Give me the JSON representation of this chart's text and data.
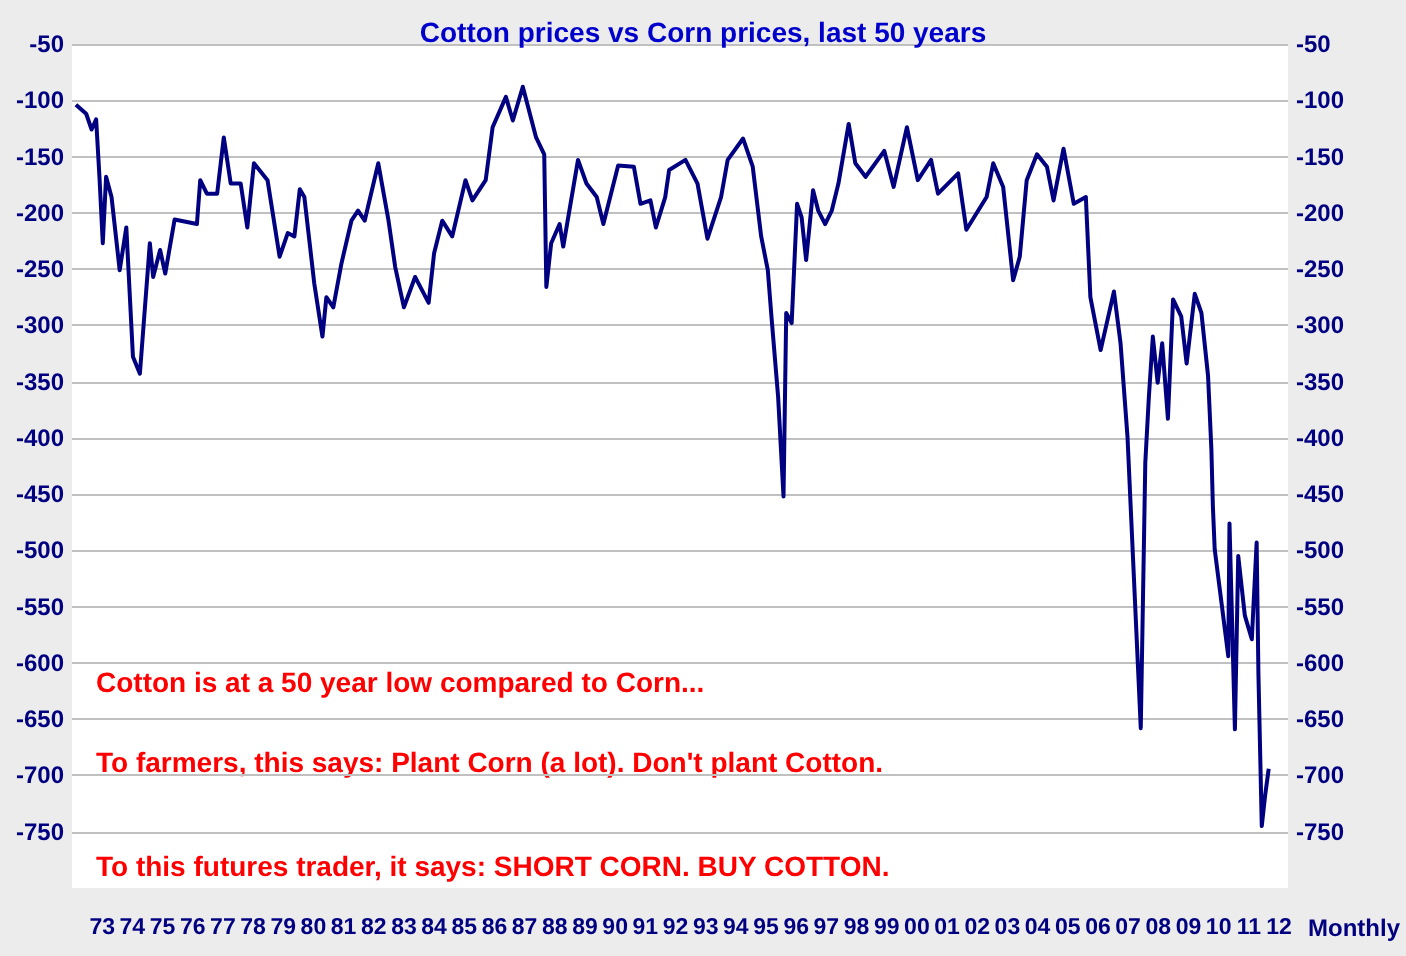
{
  "chart_data": {
    "type": "line",
    "title": "Cotton prices vs Corn prices, last 50 years",
    "xlabel": "Monthly",
    "annotations": [
      "Cotton is at a 50 year low compared to Corn...",
      "To farmers, this says: Plant Corn (a lot). Don't plant Cotton.",
      "To this futures trader, it says: SHORT CORN. BUY COTTON."
    ],
    "xlim": [
      1972,
      2012.3
    ],
    "xticks": [
      {
        "value": 1973,
        "label": "73"
      },
      {
        "value": 1974,
        "label": "74"
      },
      {
        "value": 1975,
        "label": "75"
      },
      {
        "value": 1976,
        "label": "76"
      },
      {
        "value": 1977,
        "label": "77"
      },
      {
        "value": 1978,
        "label": "78"
      },
      {
        "value": 1979,
        "label": "79"
      },
      {
        "value": 1980,
        "label": "80"
      },
      {
        "value": 1981,
        "label": "81"
      },
      {
        "value": 1982,
        "label": "82"
      },
      {
        "value": 1983,
        "label": "83"
      },
      {
        "value": 1984,
        "label": "84"
      },
      {
        "value": 1985,
        "label": "85"
      },
      {
        "value": 1986,
        "label": "86"
      },
      {
        "value": 1987,
        "label": "87"
      },
      {
        "value": 1988,
        "label": "88"
      },
      {
        "value": 1989,
        "label": "89"
      },
      {
        "value": 1990,
        "label": "90"
      },
      {
        "value": 1991,
        "label": "91"
      },
      {
        "value": 1992,
        "label": "92"
      },
      {
        "value": 1993,
        "label": "93"
      },
      {
        "value": 1994,
        "label": "94"
      },
      {
        "value": 1995,
        "label": "95"
      },
      {
        "value": 1996,
        "label": "96"
      },
      {
        "value": 1997,
        "label": "97"
      },
      {
        "value": 1998,
        "label": "98"
      },
      {
        "value": 1999,
        "label": "99"
      },
      {
        "value": 2000,
        "label": "00"
      },
      {
        "value": 2001,
        "label": "01"
      },
      {
        "value": 2002,
        "label": "02"
      },
      {
        "value": 2003,
        "label": "03"
      },
      {
        "value": 2004,
        "label": "04"
      },
      {
        "value": 2005,
        "label": "05"
      },
      {
        "value": 2006,
        "label": "06"
      },
      {
        "value": 2007,
        "label": "07"
      },
      {
        "value": 2008,
        "label": "08"
      },
      {
        "value": 2009,
        "label": "09"
      },
      {
        "value": 2010,
        "label": "10"
      },
      {
        "value": 2011,
        "label": "11"
      },
      {
        "value": 2012,
        "label": "12"
      }
    ],
    "ylim": [
      -800,
      -50
    ],
    "yticks": [
      -50,
      -100,
      -150,
      -200,
      -250,
      -300,
      -350,
      -400,
      -450,
      -500,
      -550,
      -600,
      -650,
      -700,
      -750
    ],
    "y2lim": [
      -800,
      -50
    ],
    "y2ticks": [
      -50,
      -100,
      -150,
      -200,
      -250,
      -300,
      -350,
      -400,
      -450,
      -500,
      -550,
      -600,
      -650,
      -700,
      -750
    ],
    "grid": "y",
    "marker": "none",
    "line_style": "solid",
    "series": [
      {
        "color": "#000080",
        "x": [
          1972.13,
          1972.47,
          1972.65,
          1972.8,
          1972.91,
          1973.02,
          1973.13,
          1973.31,
          1973.58,
          1973.8,
          1974.02,
          1974.25,
          1974.58,
          1974.69,
          1974.92,
          1975.09,
          1975.4,
          1976.14,
          1976.25,
          1976.47,
          1976.81,
          1977.03,
          1977.26,
          1977.59,
          1977.81,
          1978.03,
          1978.48,
          1978.88,
          1979.15,
          1979.37,
          1979.55,
          1979.7,
          1980.03,
          1980.3,
          1980.43,
          1980.66,
          1980.93,
          1981.26,
          1981.48,
          1981.7,
          1982.15,
          1982.49,
          1982.71,
          1983.0,
          1983.37,
          1983.82,
          1984.0,
          1984.27,
          1984.6,
          1985.04,
          1985.27,
          1985.71,
          1985.94,
          1986.38,
          1986.61,
          1986.94,
          1987.38,
          1987.65,
          1987.72,
          1987.88,
          1988.16,
          1988.28,
          1988.77,
          1989.05,
          1989.39,
          1989.61,
          1990.1,
          1990.62,
          1990.84,
          1991.17,
          1991.35,
          1991.66,
          1991.79,
          1992.33,
          1992.73,
          1993.06,
          1993.51,
          1993.73,
          1994.24,
          1994.56,
          1994.84,
          1995.06,
          1995.18,
          1995.4,
          1995.58,
          1995.67,
          1995.85,
          1996.03,
          1996.18,
          1996.33,
          1996.56,
          1996.73,
          1996.96,
          1997.18,
          1997.4,
          1997.74,
          1997.96,
          1998.3,
          1998.92,
          1999.23,
          1999.67,
          2000.03,
          2000.47,
          2000.7,
          2001.37,
          2001.64,
          2002.31,
          2002.53,
          2002.86,
          2003.19,
          2003.41,
          2003.64,
          2003.98,
          2004.31,
          2004.53,
          2004.86,
          2005.2,
          2005.6,
          2005.75,
          2006.09,
          2006.53,
          2006.75,
          2006.98,
          2007.42,
          2007.57,
          2007.69,
          2007.82,
          2007.98,
          2008.13,
          2008.32,
          2008.49,
          2008.76,
          2008.94,
          2009.21,
          2009.43,
          2009.65,
          2009.76,
          2009.81,
          2009.87,
          2010.32,
          2010.36,
          2010.54,
          2010.65,
          2010.87,
          2011.1,
          2011.26,
          2011.32,
          2011.43,
          2011.54,
          2011.66
        ],
        "values": [
          -104,
          -112,
          -126,
          -117,
          -168,
          -227,
          -168,
          -186,
          -251,
          -213,
          -328,
          -343,
          -227,
          -257,
          -233,
          -254,
          -206,
          -210,
          -171,
          -183,
          -183,
          -133,
          -174,
          -174,
          -213,
          -156,
          -171,
          -239,
          -218,
          -221,
          -179,
          -186,
          -263,
          -310,
          -275,
          -284,
          -245,
          -207,
          -198,
          -207,
          -156,
          -207,
          -248,
          -284,
          -257,
          -280,
          -236,
          -207,
          -221,
          -171,
          -189,
          -171,
          -124,
          -97,
          -118,
          -88,
          -133,
          -148,
          -266,
          -227,
          -210,
          -230,
          -153,
          -174,
          -186,
          -210,
          -158,
          -159,
          -192,
          -189,
          -213,
          -186,
          -162,
          -153,
          -174,
          -223,
          -186,
          -153,
          -134,
          -159,
          -221,
          -251,
          -292,
          -363,
          -452,
          -289,
          -298,
          -192,
          -204,
          -242,
          -180,
          -198,
          -210,
          -198,
          -174,
          -121,
          -156,
          -168,
          -145,
          -177,
          -124,
          -171,
          -153,
          -183,
          -165,
          -215,
          -186,
          -156,
          -177,
          -260,
          -239,
          -171,
          -148,
          -159,
          -189,
          -143,
          -192,
          -186,
          -275,
          -322,
          -270,
          -316,
          -399,
          -658,
          -422,
          -363,
          -310,
          -351,
          -316,
          -383,
          -277,
          -292,
          -334,
          -272,
          -289,
          -345,
          -410,
          -461,
          -499,
          -594,
          -476,
          -659,
          -505,
          -558,
          -579,
          -493,
          -611,
          -745,
          -718,
          -694
        ]
      }
    ]
  }
}
